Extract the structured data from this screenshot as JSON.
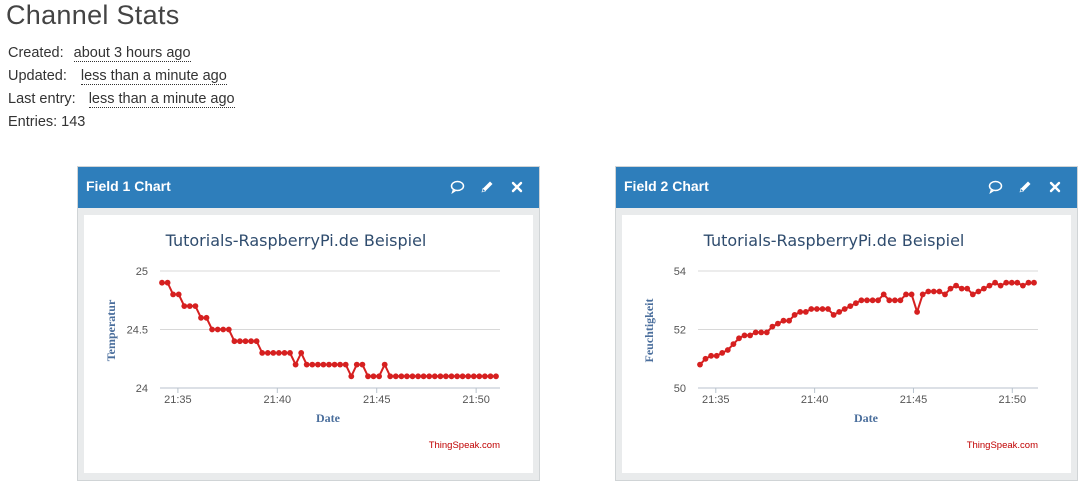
{
  "page_title": "Channel Stats",
  "stats": {
    "created_label": "Created:",
    "created_value": "about 3 hours ago",
    "updated_label": "Updated:",
    "updated_value": "less than a minute ago",
    "last_entry_label": "Last entry:",
    "last_entry_value": "less than a minute ago",
    "entries_label": "Entries:",
    "entries_value": "143"
  },
  "panels": [
    {
      "title": "Field 1 Chart",
      "icons": [
        "comment-icon",
        "pencil-icon",
        "close-icon"
      ],
      "credit": "ThingSpeak.com"
    },
    {
      "title": "Field 2 Chart",
      "icons": [
        "comment-icon",
        "pencil-icon",
        "close-icon"
      ],
      "credit": "ThingSpeak.com"
    }
  ],
  "colors": {
    "header": "#2e7ebb",
    "series": "#d62020",
    "title_text": "#2f4c6e",
    "axis_label": "#4a6e9c",
    "credit": "#c00000"
  },
  "chart_data": [
    {
      "type": "line",
      "title": "Tutorials-RaspberryPi.de Beispiel",
      "xlabel": "Date",
      "ylabel": "Temperatur",
      "x_ticks": [
        "21:35",
        "21:40",
        "21:45",
        "21:50"
      ],
      "x_tick_minutes": [
        35,
        40,
        45,
        50
      ],
      "xlim_minutes": [
        34.1,
        51.2
      ],
      "y_ticks": [
        "25",
        "24.5",
        "24"
      ],
      "y_tick_values": [
        25,
        24.5,
        24
      ],
      "ylim": [
        24,
        25
      ],
      "grid": true,
      "series": [
        {
          "values": [
            24.9,
            24.9,
            24.8,
            24.8,
            24.7,
            24.7,
            24.7,
            24.6,
            24.6,
            24.5,
            24.5,
            24.5,
            24.5,
            24.4,
            24.4,
            24.4,
            24.4,
            24.4,
            24.3,
            24.3,
            24.3,
            24.3,
            24.3,
            24.3,
            24.2,
            24.3,
            24.2,
            24.2,
            24.2,
            24.2,
            24.2,
            24.2,
            24.2,
            24.2,
            24.1,
            24.2,
            24.2,
            24.1,
            24.1,
            24.1,
            24.2,
            24.1,
            24.1,
            24.1,
            24.1,
            24.1,
            24.1,
            24.1,
            24.1,
            24.1,
            24.1,
            24.1,
            24.1,
            24.1,
            24.1,
            24.1,
            24.1,
            24.1,
            24.1,
            24.1,
            24.1
          ],
          "x_start_minutes": 34.2,
          "x_end_minutes": 51.0
        }
      ]
    },
    {
      "type": "line",
      "title": "Tutorials-RaspberryPi.de Beispiel",
      "xlabel": "Date",
      "ylabel": "Feuchtigkeit",
      "x_ticks": [
        "21:35",
        "21:40",
        "21:45",
        "21:50"
      ],
      "x_tick_minutes": [
        35,
        40,
        45,
        50
      ],
      "xlim_minutes": [
        34.1,
        51.3
      ],
      "y_ticks": [
        "54",
        "52",
        "50"
      ],
      "y_tick_values": [
        54,
        52,
        50
      ],
      "ylim": [
        50,
        54
      ],
      "grid": true,
      "series": [
        {
          "values": [
            50.8,
            51.0,
            51.1,
            51.1,
            51.2,
            51.3,
            51.5,
            51.7,
            51.8,
            51.8,
            51.9,
            51.9,
            51.9,
            52.1,
            52.2,
            52.3,
            52.3,
            52.5,
            52.6,
            52.6,
            52.7,
            52.7,
            52.7,
            52.7,
            52.5,
            52.6,
            52.7,
            52.8,
            52.9,
            53.0,
            53.0,
            53.0,
            53.0,
            53.2,
            53.0,
            53.0,
            53.0,
            53.2,
            53.2,
            52.6,
            53.2,
            53.3,
            53.3,
            53.3,
            53.2,
            53.4,
            53.5,
            53.4,
            53.4,
            53.2,
            53.3,
            53.4,
            53.5,
            53.6,
            53.5,
            53.6,
            53.6,
            53.6,
            53.5,
            53.6,
            53.6
          ],
          "x_start_minutes": 34.2,
          "x_end_minutes": 51.1
        }
      ]
    }
  ]
}
